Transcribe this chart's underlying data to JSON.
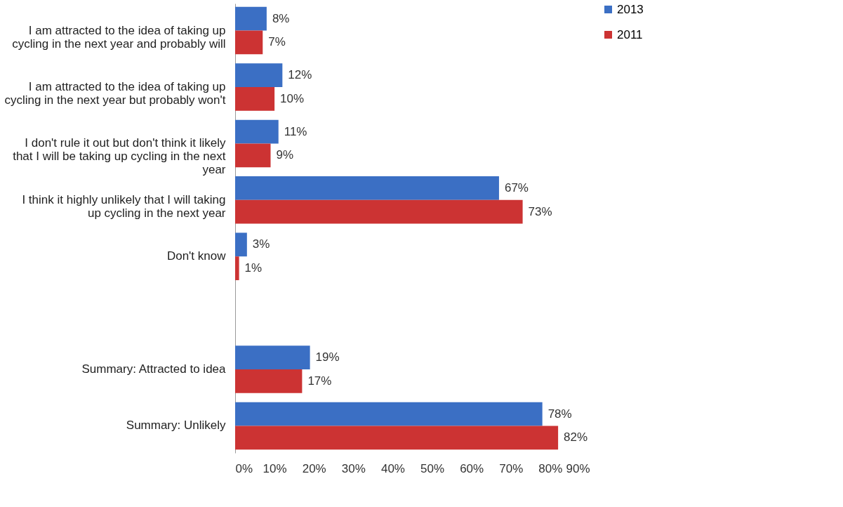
{
  "chart_data": {
    "type": "bar",
    "orientation": "horizontal",
    "categories": [
      "I am attracted to the idea of taking up cycling in the next year and probably will",
      "I am attracted to the idea of  taking up cycling in the next year but probably won't",
      "I don't rule it out but don't think it likely that I will be taking up cycling in the next year",
      "I think it highly unlikely that I will taking up cycling in the next year",
      "Don't know",
      null,
      "Summary: Attracted to idea",
      "Summary: Unlikely"
    ],
    "series": [
      {
        "name": "2013",
        "color": "#3b6fc4",
        "values": [
          8,
          12,
          11,
          67,
          3,
          null,
          19,
          78
        ],
        "value_labels": [
          "8%",
          "12%",
          "11%",
          "67%",
          "3%",
          null,
          "19%",
          "78%"
        ]
      },
      {
        "name": "2011",
        "color": "#cc3333",
        "values": [
          7,
          10,
          9,
          73,
          1,
          null,
          17,
          82
        ],
        "value_labels": [
          "7%",
          "10%",
          "9%",
          "73%",
          "1%",
          null,
          "17%",
          "82%"
        ]
      }
    ],
    "xlim": [
      0,
      90
    ],
    "xticks": [
      {
        "value": 0,
        "label": "0%"
      },
      {
        "value": 10,
        "label": "10%"
      },
      {
        "value": 20,
        "label": "20%"
      },
      {
        "value": 30,
        "label": "30%"
      },
      {
        "value": 40,
        "label": "40%"
      },
      {
        "value": 50,
        "label": "50%"
      },
      {
        "value": 60,
        "label": "60%"
      },
      {
        "value": 70,
        "label": "70%"
      },
      {
        "value": 80,
        "label": "80%"
      },
      {
        "value": 90,
        "label": "90%"
      }
    ],
    "legend": "right"
  }
}
